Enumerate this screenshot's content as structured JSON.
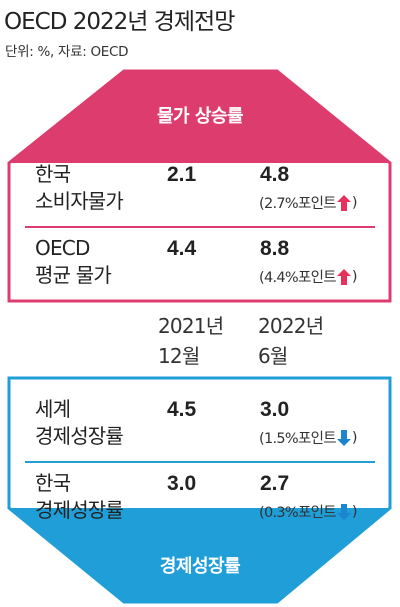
{
  "title": "OECD 2022년 경제전망",
  "unit": "단위: %, 자료: OECD",
  "colors": {
    "inflation": "#dc3c6e",
    "growth": "#1f9ed8",
    "up_arrow": "#e8305c",
    "down_arrow": "#1b86d0"
  },
  "chart_data": {
    "type": "table",
    "columns": [
      {
        "line1": "2021년",
        "line2": "12월"
      },
      {
        "line1": "2022년",
        "line2": "6월"
      }
    ],
    "groups": [
      {
        "label": "물가 상승률",
        "rows": [
          {
            "label_lines": [
              "한국",
              "소비자물가"
            ],
            "values": [
              2.1,
              4.8
            ],
            "change": "(2.7%포인트",
            "direction": "up"
          },
          {
            "label_lines": [
              "OECD",
              "평균 물가"
            ],
            "values": [
              4.4,
              8.8
            ],
            "change": "(4.4%포인트",
            "direction": "up"
          }
        ]
      },
      {
        "label": "경제성장률",
        "rows": [
          {
            "label_lines": [
              "세계",
              "경제성장률"
            ],
            "values": [
              4.5,
              3.0
            ],
            "change": "(1.5%포인트",
            "direction": "down"
          },
          {
            "label_lines": [
              "한국",
              "경제성장률"
            ],
            "values": [
              3.0,
              2.7
            ],
            "change": "(0.3%포인트",
            "direction": "down"
          }
        ]
      }
    ],
    "close_paren": ")"
  }
}
